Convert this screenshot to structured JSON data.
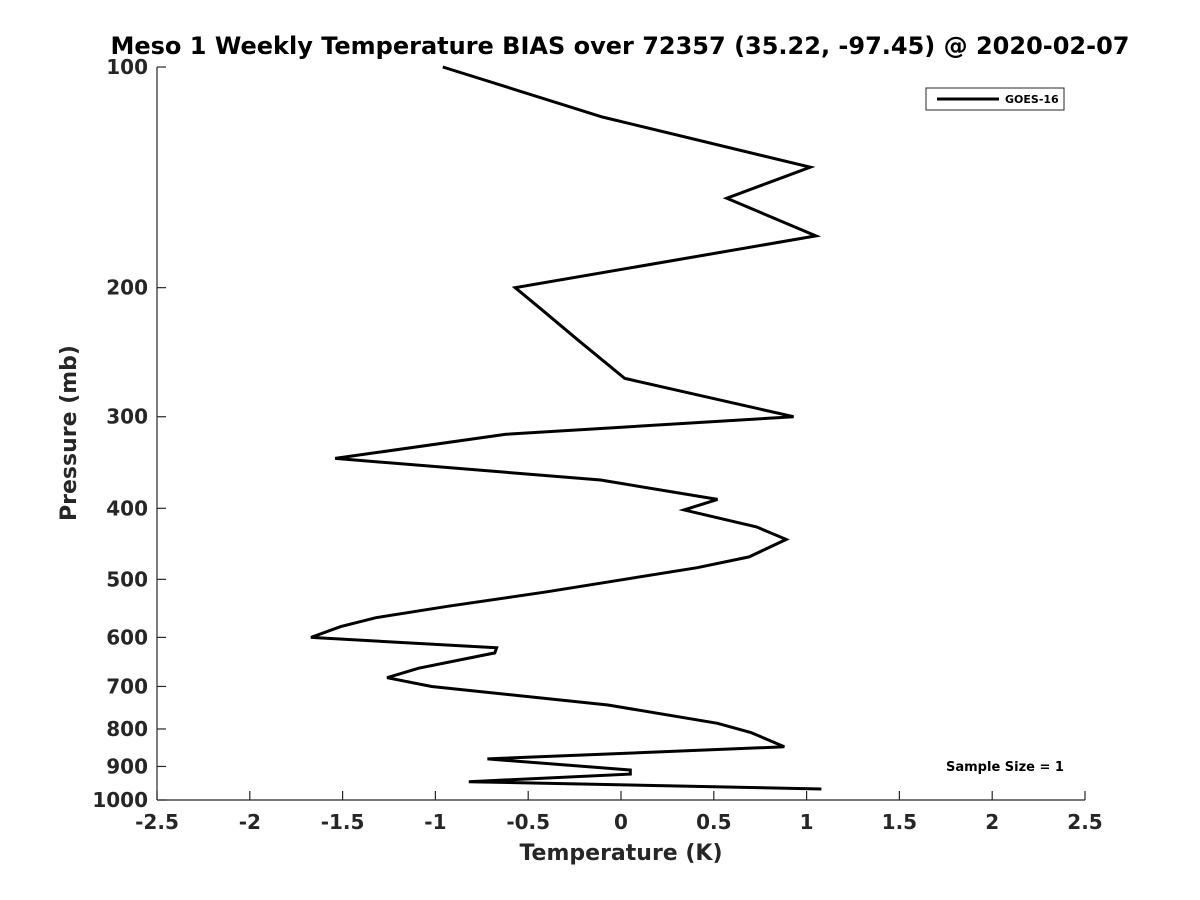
{
  "chart_data": {
    "type": "line",
    "title": "Meso 1 Weekly Temperature BIAS over 72357 (35.22, -97.45) @ 2020-02-07",
    "xlabel": "Temperature (K)",
    "ylabel": "Pressure (mb)",
    "xlim": [
      -2.5,
      2.5
    ],
    "ylim": [
      100,
      1000
    ],
    "yscale": "log",
    "y_reversed": true,
    "x_ticks": [
      "-2.5",
      "-2",
      "-1.5",
      "-1",
      "-0.5",
      "0",
      "0.5",
      "1",
      "1.5",
      "2",
      "2.5"
    ],
    "y_ticks": [
      "100",
      "200",
      "300",
      "400",
      "500",
      "600",
      "700",
      "800",
      "900",
      "1000"
    ],
    "grid": false,
    "legend_position": "top-right",
    "annotation": "Sample Size = 1",
    "series": [
      {
        "name": "GOES-16",
        "color": "#000000",
        "x": [
          -0.96,
          -0.1,
          1.02,
          0.57,
          1.05,
          -0.57,
          -0.42,
          -0.23,
          0.02,
          0.93,
          -0.62,
          -1.54,
          -0.11,
          0.52,
          0.34,
          0.73,
          0.89,
          0.69,
          0.41,
          -0.4,
          -0.93,
          -1.32,
          -1.51,
          -1.67,
          -0.67,
          -0.68,
          -1.09,
          -1.26,
          -1.02,
          -0.07,
          0.52,
          0.7,
          0.88,
          -0.72,
          0.05,
          0.05,
          -0.82,
          1.08
        ],
        "y": [
          100,
          117,
          137,
          151,
          170,
          200,
          215,
          236,
          266,
          300,
          317,
          342,
          366,
          389,
          402,
          424,
          441,
          466,
          482,
          520,
          544,
          564,
          580,
          600,
          620,
          630,
          661,
          681,
          700,
          742,
          786,
          809,
          846,
          879,
          910,
          922,
          944,
          966
        ]
      }
    ]
  }
}
